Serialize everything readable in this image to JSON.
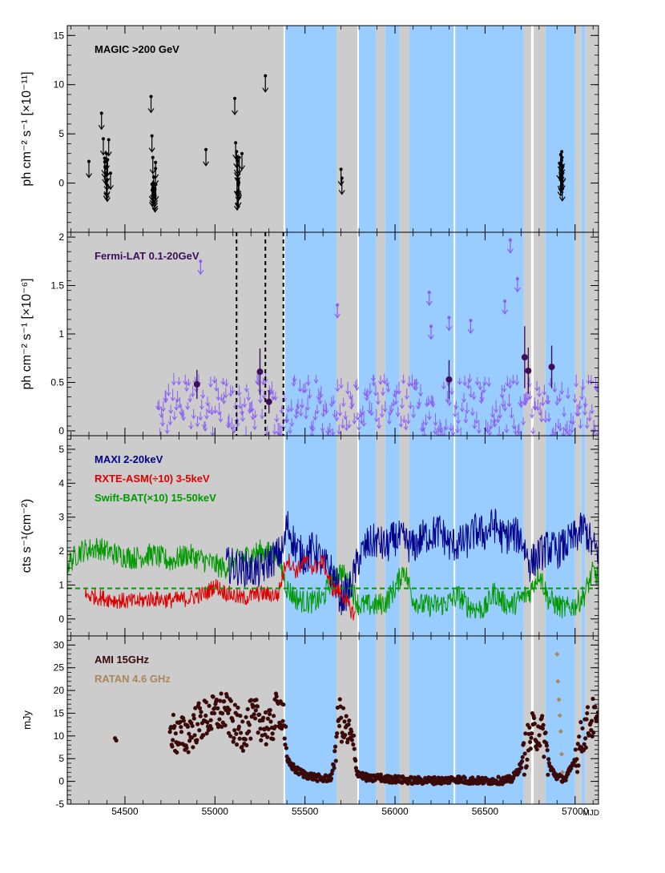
{
  "colors": {
    "grey_band": "#cccccc",
    "blue_band": "#99ccff",
    "magic": "#000000",
    "fermi_ul": "#8a5cf5",
    "fermi_pt": "#3d0f58",
    "maxi": "#00008b",
    "rxte": "#dd0000",
    "bat": "#009900",
    "ami": "#3a0a0a",
    "ratan": "#a9875a"
  },
  "chart_data": {
    "type": "line",
    "title": "",
    "xlabel": "MJD",
    "xlim": [
      54180,
      57130
    ],
    "x_ticks": [
      54500,
      55000,
      55500,
      56000,
      56500,
      57000
    ],
    "shaded_intervals": {
      "grey": [
        [
          54180,
          55385
        ],
        [
          55675,
          55795
        ],
        [
          55895,
          55945
        ],
        [
          56025,
          56080
        ],
        [
          56715,
          56765
        ],
        [
          56770,
          56835
        ],
        [
          57000,
          57035
        ],
        [
          57055,
          57130
        ]
      ],
      "blue": [
        [
          55385,
          55675
        ],
        [
          55795,
          55895
        ],
        [
          55945,
          56025
        ],
        [
          56080,
          56715
        ],
        [
          56835,
          57000
        ],
        [
          57035,
          57055
        ]
      ],
      "white_lines": [
        55385,
        55795,
        56330,
        56760
      ]
    },
    "panels": [
      {
        "id": "magic",
        "ylabel": "ph cm⁻² s⁻¹ [×10⁻¹¹]",
        "ylim": [
          -5,
          16
        ],
        "y_ticks": [
          0,
          5,
          10,
          15
        ],
        "legend": [
          {
            "label": "MAGIC >200 GeV",
            "color": "#000000"
          }
        ],
        "series": [
          {
            "name": "MAGIC upper limits",
            "kind": "upper_limit",
            "x": [
              54300,
              54370,
              54380,
              54390,
              54400,
              54410,
              54420,
              54645,
              54650,
              54655,
              54660,
              54665,
              54670,
              54950,
              55110,
              55115,
              55120,
              55125,
              55130,
              55135,
              55150,
              55280,
              55700,
              55705,
              56920,
              56925,
              56930
            ],
            "y": [
              2.2,
              7.1,
              4.5,
              1.6,
              0.9,
              4.4,
              1.0,
              8.8,
              4.8,
              2.6,
              0.6,
              -0.8,
              2.1,
              3.4,
              8.6,
              4.1,
              3.2,
              1.8,
              0.2,
              2.6,
              3.0,
              10.9,
              1.4,
              0.5,
              2.9,
              2.3,
              1.6
            ]
          }
        ]
      },
      {
        "id": "fermi",
        "ylabel": "ph cm⁻² s⁻¹ [×10⁻⁶]",
        "ylim": [
          -0.05,
          2.05
        ],
        "y_ticks": [
          0,
          0.5,
          1,
          1.5,
          2
        ],
        "y_tick_labels": [
          "0",
          "0.5",
          "1",
          "1.5",
          "2"
        ],
        "legend": [
          {
            "label": "Fermi-LAT 0.1-20GeV",
            "color": "#3d0f58"
          }
        ],
        "vertical_dashed_lines": [
          55120,
          55280,
          55380
        ],
        "upper_limit_band": {
          "x_start": 54680,
          "x_end": 57130,
          "y_min": 0.02,
          "y_max": 0.6
        },
        "series": [
          {
            "name": "Fermi detections",
            "kind": "point_errorbar",
            "x": [
              54900,
              55250,
              55300,
              56300,
              56720,
              56740,
              56870
            ],
            "y": [
              0.48,
              0.61,
              0.3,
              0.53,
              0.76,
              0.62,
              0.66
            ],
            "err": [
              0.15,
              0.24,
              0.12,
              0.2,
              0.32,
              0.24,
              0.22
            ]
          },
          {
            "name": "Fermi upper limits",
            "kind": "upper_limit",
            "x": [
              54920,
              55680,
              56190,
              56200,
              56300,
              56640,
              56610,
              56680,
              56420
            ],
            "y": [
              1.75,
              1.3,
              1.43,
              1.08,
              1.17,
              1.97,
              1.34,
              1.57,
              1.14
            ]
          }
        ]
      },
      {
        "id": "xray",
        "ylabel": "cts s⁻¹(cm⁻²)",
        "ylim": [
          -0.5,
          5.4
        ],
        "y_ticks": [
          0,
          1,
          2,
          3,
          4,
          5
        ],
        "legend": [
          {
            "label": "MAXI 2-20keV",
            "color": "#00008b"
          },
          {
            "label": "RXTE-ASM(÷10) 3-5keV",
            "color": "#dd0000"
          },
          {
            "label": "Swift-BAT(×10) 15-50keV",
            "color": "#009900"
          }
        ],
        "horizontal_dashed": {
          "y": 0.9,
          "color": "#009900"
        },
        "series": [
          {
            "name": "MAXI 2-20keV",
            "x": [
              55060,
              55150,
              55250,
              55300,
              55380,
              55400,
              55450,
              55500,
              55550,
              55600,
              55650,
              55700,
              55750,
              55800,
              55850,
              55900,
              55950,
              56000,
              56050,
              56100,
              56150,
              56200,
              56250,
              56300,
              56350,
              56400,
              56450,
              56500,
              56550,
              56600,
              56650,
              56700,
              56750,
              56800,
              56850,
              56900,
              56950,
              57000,
              57050,
              57100,
              57130
            ],
            "y": [
              1.6,
              1.5,
              1.4,
              1.7,
              2.0,
              2.8,
              2.1,
              1.8,
              2.1,
              1.6,
              1.4,
              0.6,
              0.9,
              1.8,
              2.2,
              2.3,
              2.1,
              2.4,
              2.3,
              2.1,
              2.4,
              2.5,
              2.6,
              2.2,
              2.2,
              2.3,
              2.6,
              2.5,
              2.8,
              2.4,
              2.5,
              2.4,
              1.6,
              1.9,
              2.1,
              2.0,
              2.2,
              2.4,
              2.7,
              2.1,
              2.0
            ]
          },
          {
            "name": "RXTE-ASM(÷10) 3-5keV",
            "x": [
              54280,
              54350,
              54450,
              54550,
              54650,
              54750,
              54850,
              54950,
              55000,
              55050,
              55150,
              55250,
              55350,
              55400,
              55450,
              55500,
              55550,
              55600,
              55650,
              55700,
              55750,
              55780
            ],
            "y": [
              0.7,
              0.65,
              0.55,
              0.5,
              0.6,
              0.55,
              0.6,
              0.75,
              1.0,
              0.8,
              0.6,
              0.75,
              0.7,
              1.8,
              1.4,
              1.7,
              1.5,
              1.7,
              0.9,
              0.8,
              0.3,
              0.1
            ]
          },
          {
            "name": "Swift-BAT(×10) 15-50keV",
            "x": [
              54180,
              54250,
              54350,
              54450,
              54550,
              54650,
              54750,
              54850,
              54950,
              55050,
              55150,
              55250,
              55350,
              55400,
              55450,
              55500,
              55550,
              55600,
              55650,
              55700,
              55750,
              55800,
              55850,
              55900,
              55950,
              56000,
              56050,
              56100,
              56150,
              56200,
              56250,
              56300,
              56350,
              56400,
              56450,
              56500,
              56550,
              56600,
              56650,
              56700,
              56750,
              56800,
              56850,
              56900,
              56950,
              57000,
              57050,
              57100,
              57130
            ],
            "y": [
              1.6,
              2.0,
              2.1,
              1.9,
              1.8,
              1.9,
              1.7,
              1.9,
              1.7,
              1.5,
              1.8,
              2.0,
              1.9,
              0.9,
              0.6,
              0.5,
              0.5,
              0.6,
              1.2,
              1.4,
              1.0,
              0.4,
              0.4,
              0.4,
              0.5,
              0.9,
              1.5,
              0.6,
              0.4,
              0.4,
              0.4,
              0.5,
              0.7,
              0.4,
              0.3,
              0.3,
              0.8,
              0.5,
              0.4,
              0.6,
              0.8,
              1.4,
              0.6,
              0.4,
              0.3,
              0.4,
              0.7,
              1.4,
              1.2
            ]
          }
        ]
      },
      {
        "id": "radio",
        "ylabel": "mJy",
        "ylim": [
          -5,
          32
        ],
        "y_ticks": [
          -5,
          0,
          5,
          10,
          15,
          20,
          25,
          30
        ],
        "legend": [
          {
            "label": "AMI 15GHz",
            "color": "#3a0a0a"
          },
          {
            "label": "RATAN 4.6 GHz",
            "color": "#a9875a"
          }
        ],
        "series": [
          {
            "name": "AMI 15GHz",
            "kind": "scatter",
            "x": [
              54450,
              54760,
              54800,
              54850,
              54900,
              54950,
              55000,
              55050,
              55100,
              55150,
              55200,
              55250,
              55300,
              55350,
              55380,
              55400,
              55450,
              55500,
              55550,
              55600,
              55650,
              55690,
              55710,
              55730,
              55760,
              55790,
              55830,
              55870,
              55900,
              55950,
              56000,
              56050,
              56100,
              56150,
              56200,
              56250,
              56300,
              56330,
              56400,
              56450,
              56500,
              56550,
              56600,
              56650,
              56700,
              56730,
              56760,
              56800,
              56830,
              56860,
              56900,
              56950,
              57000,
              57050,
              57100,
              57120
            ],
            "y": [
              9.5,
              11.2,
              9.7,
              10.4,
              12.8,
              13.8,
              14.7,
              15.7,
              12.8,
              10.9,
              13.5,
              13.8,
              11.1,
              16.0,
              15.5,
              4.5,
              2.5,
              1.5,
              1.0,
              0.5,
              1.0,
              15.0,
              12.0,
              11.0,
              9.0,
              2.0,
              1.0,
              0.5,
              1.0,
              0.5,
              0.5,
              0.3,
              0.2,
              0.2,
              0.2,
              0.2,
              0.3,
              0.6,
              0.2,
              0.2,
              0.1,
              0.2,
              0.2,
              0.5,
              3.5,
              7.5,
              10.5,
              11.5,
              9.5,
              3.0,
              1.0,
              0.5,
              5.0,
              11.0,
              14.0,
              12.0
            ]
          },
          {
            "name": "RATAN 4.6 GHz",
            "kind": "scatter",
            "x": [
              56900,
              56905,
              56910,
              56915,
              56920,
              56925,
              56930
            ],
            "y": [
              28.0,
              22.0,
              18.0,
              14.5,
              11.0,
              6.0,
              2.0
            ]
          }
        ]
      }
    ]
  }
}
